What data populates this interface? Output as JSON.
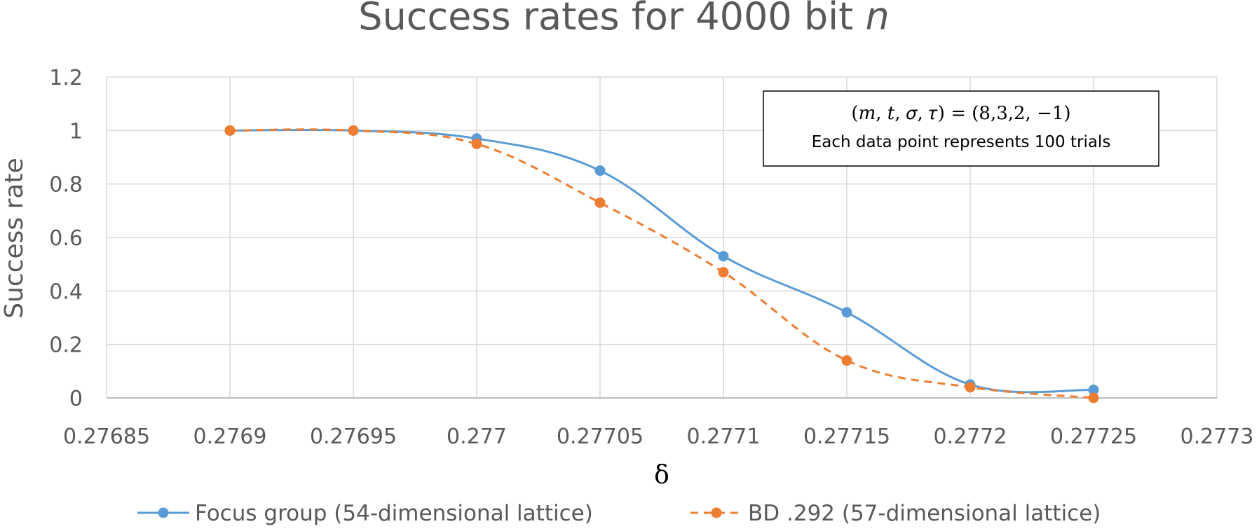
{
  "chart_data": {
    "type": "line",
    "title": "Success rates for 4000 bit ",
    "title_italic": "n",
    "xlabel": "δ",
    "ylabel": "Success rate",
    "xlim": [
      0.27685,
      0.2773
    ],
    "ylim": [
      0,
      1.2
    ],
    "x_ticks": [
      0.27685,
      0.2769,
      0.27695,
      0.277,
      0.27705,
      0.2771,
      0.27715,
      0.2772,
      0.27725,
      0.2773
    ],
    "x_tick_labels": [
      "0.27685",
      "0.2769",
      "0.27695",
      "0.277",
      "0.27705",
      "0.2771",
      "0.27715",
      "0.2772",
      "0.27725",
      "0.2773"
    ],
    "y_ticks": [
      0,
      0.2,
      0.4,
      0.6,
      0.8,
      1,
      1.2
    ],
    "y_tick_labels": [
      "0",
      "0.2",
      "0.4",
      "0.6",
      "0.8",
      "1",
      "1.2"
    ],
    "grid": true,
    "legend_position": "bottom",
    "series": [
      {
        "name": "Focus group (54-dimensional lattice)",
        "color": "#5B9BD5",
        "style": "solid",
        "x": [
          0.2769,
          0.27695,
          0.277,
          0.27705,
          0.2771,
          0.27715,
          0.2772,
          0.27725
        ],
        "y": [
          1,
          1,
          0.97,
          0.85,
          0.53,
          0.32,
          0.05,
          0.03
        ]
      },
      {
        "name": "BD .292 (57-dimensional lattice)",
        "color": "#ED7D31",
        "style": "dashed",
        "x": [
          0.2769,
          0.27695,
          0.277,
          0.27705,
          0.2771,
          0.27715,
          0.2772,
          0.27725
        ],
        "y": [
          1,
          1,
          0.95,
          0.73,
          0.47,
          0.14,
          0.04,
          0
        ]
      }
    ],
    "annotation": {
      "line1": "(𝑚, 𝑡, 𝜎, 𝜏) = (8,3,2, −1)",
      "line2": "Each data point represents 100 trials"
    }
  }
}
